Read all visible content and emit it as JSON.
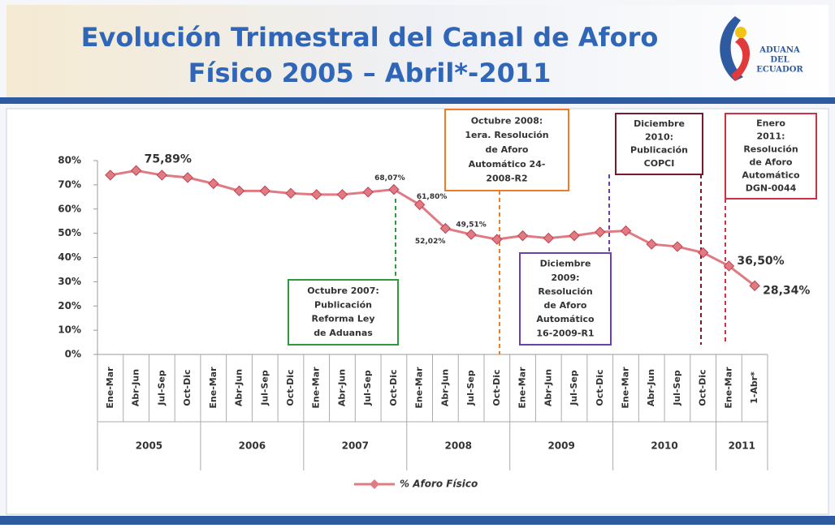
{
  "header": {
    "title_lines": [
      "Evolución Trimestral del Canal de Aforo",
      "Físico 2005 – Abril*-2011"
    ],
    "logo_lines": [
      "ADUANA",
      "DEL",
      "ECUADOR"
    ]
  },
  "chart_data": {
    "type": "line",
    "categories": [
      "Ene-Mar",
      "Abr-Jun",
      "Jul-Sep",
      "Oct-Dic",
      "Ene-Mar",
      "Abr-Jun",
      "Jul-Sep",
      "Oct-Dic",
      "Ene-Mar",
      "Abr-Jun",
      "Jul-Sep",
      "Oct-Dic",
      "Ene-Mar",
      "Abr-Jun",
      "Jul-Sep",
      "Oct-Dic",
      "Ene-Mar",
      "Abr-Jun",
      "Jul-Sep",
      "Oct-Dic",
      "Ene-Mar",
      "Abr-Jun",
      "Jul-Sep",
      "Oct-Dic",
      "Ene-Mar",
      "1-Abr*"
    ],
    "groups": [
      {
        "label": "2005",
        "size": 4
      },
      {
        "label": "2006",
        "size": 4
      },
      {
        "label": "2007",
        "size": 4
      },
      {
        "label": "2008",
        "size": 4
      },
      {
        "label": "2009",
        "size": 4
      },
      {
        "label": "2010",
        "size": 4
      },
      {
        "label": "2011",
        "size": 2
      }
    ],
    "series": [
      {
        "name": "% Aforo Físico",
        "color": "#e07b83",
        "values": [
          74,
          75.89,
          74,
          73,
          70.5,
          67.5,
          67.5,
          66.5,
          66,
          66,
          67,
          68.07,
          61.8,
          52.02,
          49.51,
          47.5,
          49,
          48,
          49,
          50.5,
          51,
          45.5,
          44.5,
          42,
          36.5,
          28.34
        ],
        "value_labels": [
          null,
          "75,89%",
          null,
          null,
          null,
          null,
          null,
          null,
          null,
          null,
          null,
          "68,07%",
          "61,80%",
          "52,02%",
          "49,51%",
          null,
          null,
          null,
          null,
          null,
          null,
          null,
          null,
          null,
          "36,50%",
          "28,34%"
        ]
      }
    ],
    "ylim": [
      0,
      80
    ],
    "yticks": [
      {
        "value": 0,
        "label": "0%"
      },
      {
        "value": 10,
        "label": "10%"
      },
      {
        "value": 20,
        "label": "20%"
      },
      {
        "value": 30,
        "label": "30%"
      },
      {
        "value": 40,
        "label": "40%"
      },
      {
        "value": 50,
        "label": "50%"
      },
      {
        "value": 60,
        "label": "60%"
      },
      {
        "value": 70,
        "label": "70%"
      },
      {
        "value": 80,
        "label": "80%"
      }
    ],
    "legend": "bottom",
    "annotations": [
      {
        "lines": [
          "Octubre 2007:",
          "Publicación",
          "Reforma Ley",
          "de Aduanas"
        ],
        "color": "#2e9a3c"
      },
      {
        "lines": [
          "Octubre 2008:",
          "1era. Resolución",
          "de Aforo",
          "Automático 24-",
          "2008-R2"
        ],
        "color": "#f07a28"
      },
      {
        "lines": [
          "Diciembre",
          "2009:",
          "Resolución",
          "de Aforo",
          "Automático",
          "16-2009-R1"
        ],
        "color": "#6a3fb0"
      },
      {
        "lines": [
          "Diciembre",
          "2010:",
          "Publicación",
          "COPCI"
        ],
        "color": "#7a1a2a"
      },
      {
        "lines": [
          "Enero",
          "2011:",
          "Resolución",
          "de Aforo",
          "Automático",
          "DGN-0044"
        ],
        "color": "#d03040"
      }
    ]
  }
}
